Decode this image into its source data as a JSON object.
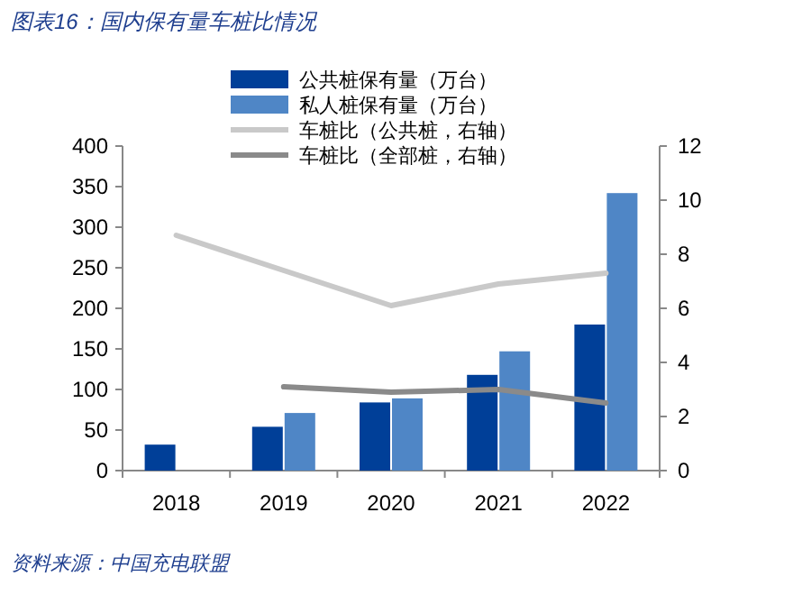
{
  "chart_data": {
    "type": "bar",
    "title": "图表16：国内保有量车桩比情况",
    "categories": [
      "2018",
      "2019",
      "2020",
      "2021",
      "2022"
    ],
    "series": [
      {
        "name": "公共桩保有量（万台）",
        "color": "#003f98",
        "values": [
          32,
          54,
          84,
          118,
          180
        ]
      },
      {
        "name": "私人桩保有量（万台）",
        "color": "#4f86c6",
        "values": [
          null,
          71,
          89,
          147,
          342
        ]
      },
      {
        "name": "车桩比（公共桩，右轴）",
        "type": "line",
        "axis": "y2",
        "color": "#c9c9c9",
        "values": [
          8.7,
          7.4,
          6.1,
          6.9,
          7.3
        ]
      },
      {
        "name": "车桩比（全部桩，右轴）",
        "type": "line",
        "axis": "y2",
        "color": "#8a8a8a",
        "values": [
          null,
          3.1,
          2.9,
          3.0,
          2.5
        ]
      }
    ],
    "ylim": [
      0,
      400
    ],
    "yticks": [
      0,
      50,
      100,
      150,
      200,
      250,
      300,
      350,
      400
    ],
    "y2lim": [
      0,
      12
    ],
    "y2ticks": [
      0,
      2,
      4,
      6,
      8,
      10,
      12
    ],
    "legend": "top",
    "grid": false,
    "annotations": [
      "资料来源：中国充电联盟"
    ]
  }
}
